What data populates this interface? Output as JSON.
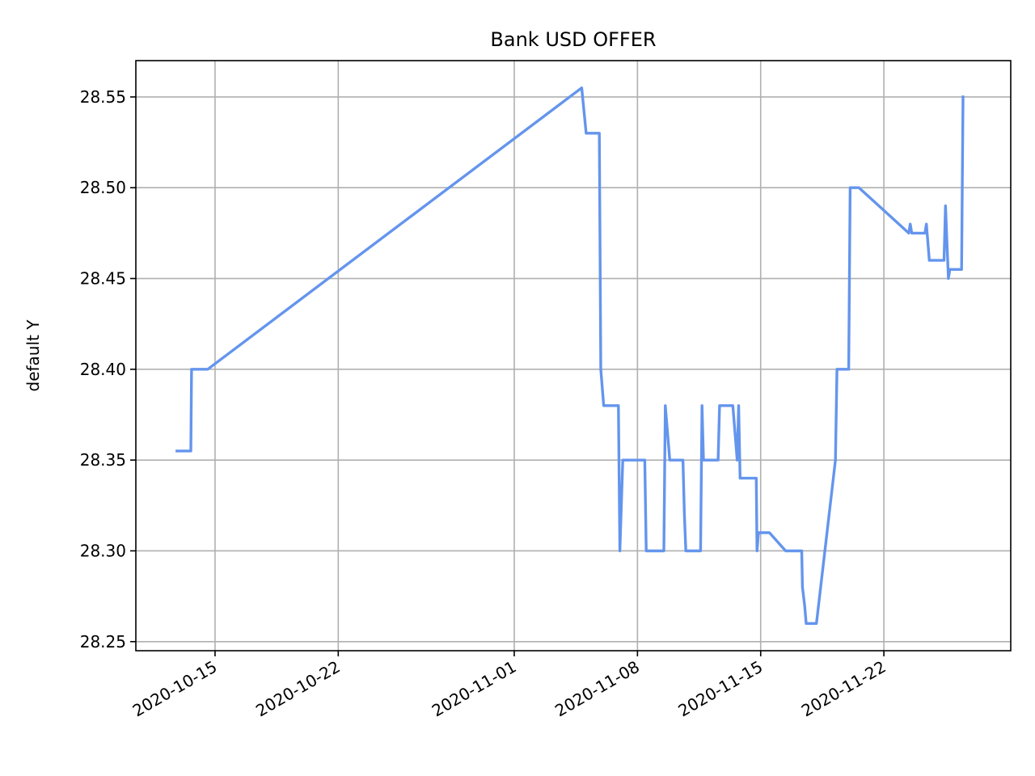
{
  "chart_data": {
    "type": "line",
    "title": "Bank USD  OFFER",
    "xlabel": "",
    "ylabel": "default Y",
    "grid": true,
    "xlim": [
      "2020-10-10T12:00",
      "2020-11-29T05:00"
    ],
    "ylim": [
      28.245,
      28.57
    ],
    "x_ticks": [
      "2020-10-15",
      "2020-10-22",
      "2020-11-01",
      "2020-11-08",
      "2020-11-15",
      "2020-11-22"
    ],
    "y_ticks": [
      "28.25",
      "28.30",
      "28.35",
      "28.40",
      "28.45",
      "28.50",
      "28.55"
    ],
    "series": [
      {
        "color": "#6495ED",
        "points": [
          [
            "2020-10-12T20:00",
            28.355
          ],
          [
            "2020-10-13T15:00",
            28.355
          ],
          [
            "2020-10-13T16:00",
            28.4
          ],
          [
            "2020-10-14T14:00",
            28.4
          ],
          [
            "2020-11-04T20:00",
            28.555
          ],
          [
            "2020-11-05T02:00",
            28.53
          ],
          [
            "2020-11-05T20:00",
            28.53
          ],
          [
            "2020-11-05T22:00",
            28.4
          ],
          [
            "2020-11-06T02:00",
            28.38
          ],
          [
            "2020-11-06T22:00",
            28.38
          ],
          [
            "2020-11-07T00:00",
            28.3
          ],
          [
            "2020-11-07T04:00",
            28.35
          ],
          [
            "2020-11-08T10:00",
            28.35
          ],
          [
            "2020-11-08T12:00",
            28.3
          ],
          [
            "2020-11-09T12:00",
            28.3
          ],
          [
            "2020-11-09T14:00",
            28.38
          ],
          [
            "2020-11-09T20:00",
            28.35
          ],
          [
            "2020-11-10T14:00",
            28.35
          ],
          [
            "2020-11-10T16:00",
            28.32
          ],
          [
            "2020-11-10T18:00",
            28.3
          ],
          [
            "2020-11-11T14:00",
            28.3
          ],
          [
            "2020-11-11T16:00",
            28.38
          ],
          [
            "2020-11-11T18:00",
            28.35
          ],
          [
            "2020-11-12T14:00",
            28.35
          ],
          [
            "2020-11-12T16:00",
            28.38
          ],
          [
            "2020-11-13T10:00",
            28.38
          ],
          [
            "2020-11-13T16:00",
            28.35
          ],
          [
            "2020-11-13T18:00",
            28.38
          ],
          [
            "2020-11-13T20:00",
            28.34
          ],
          [
            "2020-11-14T18:00",
            28.34
          ],
          [
            "2020-11-14T19:00",
            28.3
          ],
          [
            "2020-11-14T21:00",
            28.31
          ],
          [
            "2020-11-15T12:00",
            28.31
          ],
          [
            "2020-11-16T10:00",
            28.3
          ],
          [
            "2020-11-17T08:00",
            28.3
          ],
          [
            "2020-11-17T09:00",
            28.28
          ],
          [
            "2020-11-17T12:00",
            28.27
          ],
          [
            "2020-11-17T14:00",
            28.26
          ],
          [
            "2020-11-18T04:00",
            28.26
          ],
          [
            "2020-11-19T06:00",
            28.35
          ],
          [
            "2020-11-19T08:00",
            28.4
          ],
          [
            "2020-11-20T00:00",
            28.4
          ],
          [
            "2020-11-20T02:00",
            28.5
          ],
          [
            "2020-11-20T14:00",
            28.5
          ],
          [
            "2020-11-23T10:00",
            28.475
          ],
          [
            "2020-11-23T12:00",
            28.48
          ],
          [
            "2020-11-23T14:00",
            28.475
          ],
          [
            "2020-11-24T08:00",
            28.475
          ],
          [
            "2020-11-24T10:00",
            28.48
          ],
          [
            "2020-11-24T12:00",
            28.47
          ],
          [
            "2020-11-24T14:00",
            28.46
          ],
          [
            "2020-11-25T10:00",
            28.46
          ],
          [
            "2020-11-25T12:00",
            28.49
          ],
          [
            "2020-11-25T14:00",
            28.47
          ],
          [
            "2020-11-25T16:00",
            28.45
          ],
          [
            "2020-11-25T18:00",
            28.455
          ],
          [
            "2020-11-26T10:00",
            28.455
          ],
          [
            "2020-11-26T12:00",
            28.55
          ]
        ]
      }
    ]
  }
}
